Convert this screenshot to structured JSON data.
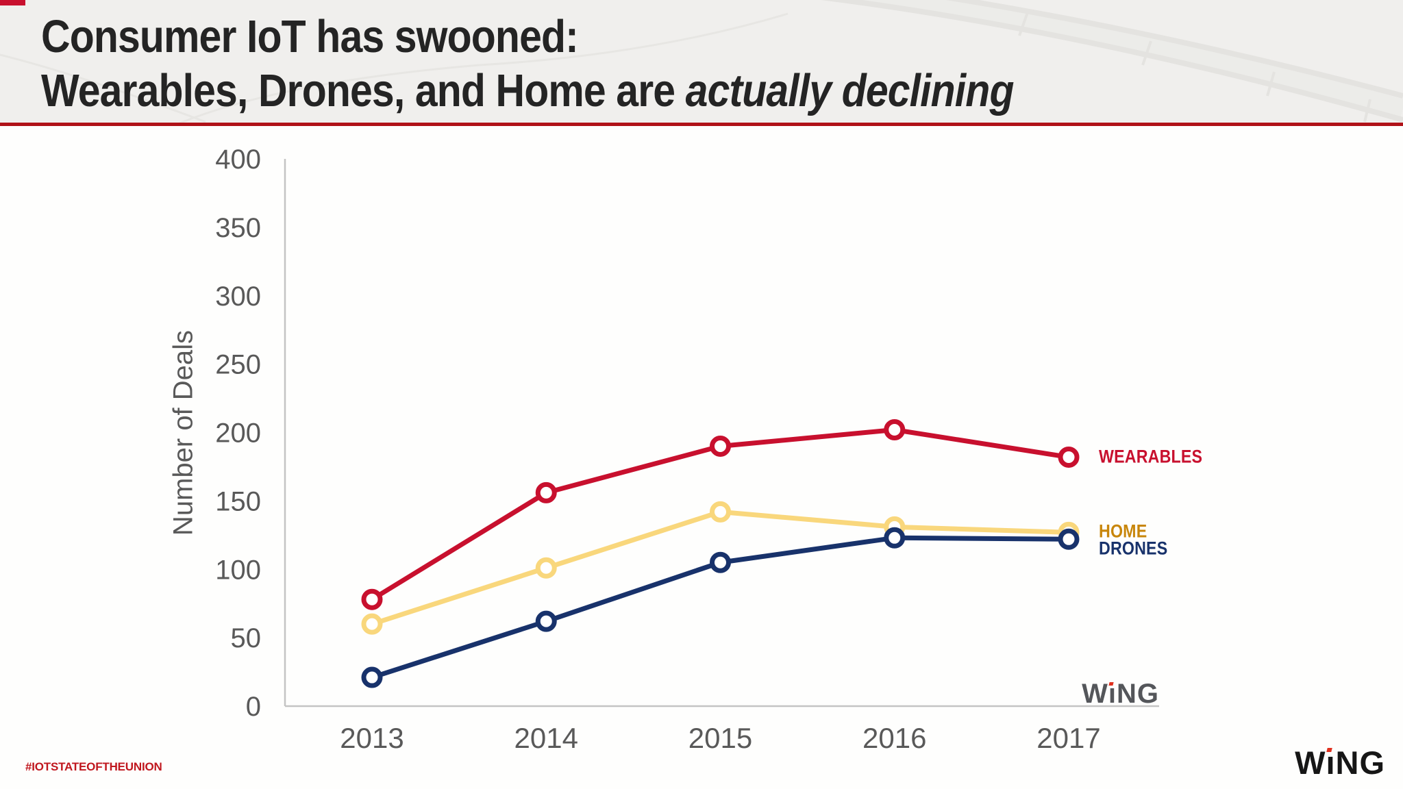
{
  "header": {
    "title_line1": "Consumer IoT has swooned:",
    "title_line2_regular": "Wearables, Drones, and Home are ",
    "title_line2_italic": "actually declining"
  },
  "chart_data": {
    "type": "line",
    "title": "",
    "xlabel": "",
    "ylabel": "Number of Deals",
    "x": [
      "2013",
      "2014",
      "2015",
      "2016",
      "2017"
    ],
    "xticks": [
      "2013",
      "2014",
      "2015",
      "2016",
      "2017"
    ],
    "yticks": [
      0,
      50,
      100,
      150,
      200,
      250,
      300,
      350,
      400
    ],
    "ylim": [
      0,
      400
    ],
    "grid": false,
    "marker": "open-circle",
    "legend_position": "inline labels right of last data points",
    "series": [
      {
        "name": "WEARABLES",
        "values": [
          78,
          156,
          190,
          202,
          182
        ],
        "line_color": "#C8102E",
        "label_color": "#C8102E"
      },
      {
        "name": "HOME",
        "values": [
          60,
          101,
          142,
          131,
          127
        ],
        "line_color": "#F9D77C",
        "label_color": "#C8860B"
      },
      {
        "name": "DRONES",
        "values": [
          21,
          62,
          105,
          123,
          122
        ],
        "line_color": "#18326B",
        "label_color": "#18326B"
      }
    ]
  },
  "watermark": {
    "full": "WiNG",
    "w": "W",
    "i": "ı",
    "ng": "NG"
  },
  "footer": {
    "hashtag": "#IOTSTATEOFTHEUNION",
    "logo": {
      "full": "WiNG",
      "w": "W",
      "i": "ı",
      "ng": "NG"
    }
  },
  "colors": {
    "corner_red": "#C8102E",
    "divider_red": "#B01218",
    "hashtag_red": "#C0171E",
    "logo_dot_red": "#E0301E",
    "axis_gray": "#C4C4C4",
    "tick_text_gray": "#595959",
    "watermark_gray": "#54565A",
    "title_color": "#242424",
    "header_bg": "#F0EFED",
    "body_bg": "#FEFEFD"
  }
}
